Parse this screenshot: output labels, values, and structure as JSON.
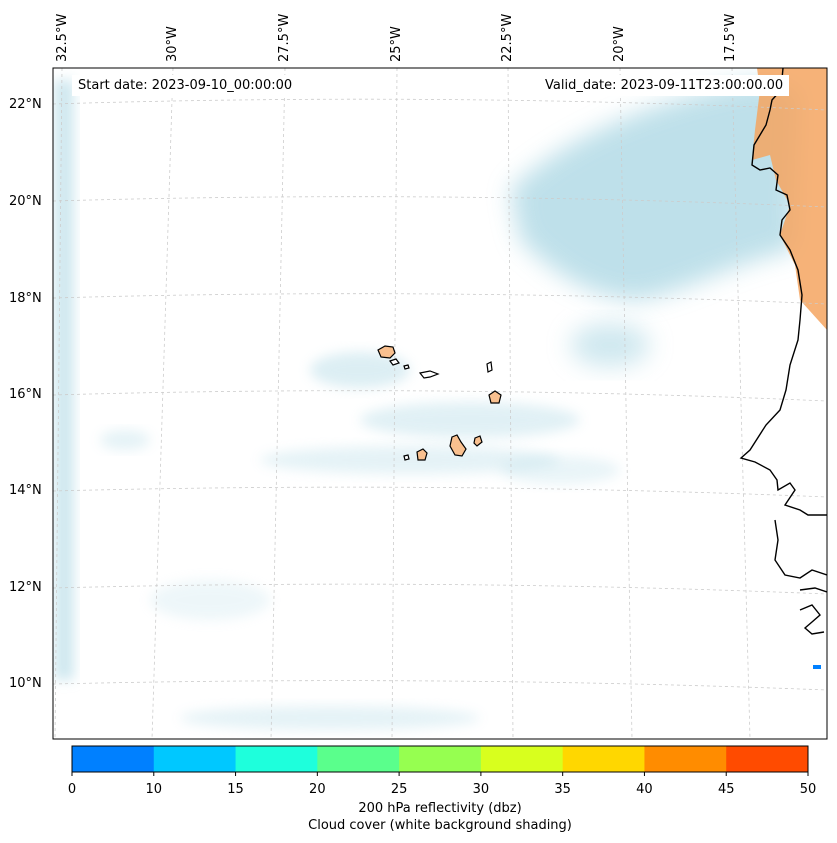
{
  "map": {
    "start_date": "Start date: 2023-09-10_00:00:00",
    "valid_date": "Valid_date: 2023-09-11T23:00:00.00",
    "lon_labels": [
      "32.5°W",
      "30°W",
      "27.5°W",
      "25°W",
      "22.5°W",
      "20°W",
      "17.5°W"
    ],
    "lat_labels": [
      "22°N",
      "20°N",
      "18°N",
      "16°N",
      "14°N",
      "12°N",
      "10°N"
    ]
  },
  "colorbar": {
    "title": "200 hPa reflectivity (dbz)",
    "subtitle": "Cloud cover (white background shading)",
    "ticks": [
      "0",
      "10",
      "15",
      "20",
      "25",
      "30",
      "35",
      "40",
      "45",
      "50"
    ],
    "colors": [
      "#0080ff",
      "#00c8ff",
      "#1effdc",
      "#5aff8c",
      "#96ff50",
      "#d8ff1e",
      "#ffd700",
      "#ff8c00",
      "#ff4b00"
    ]
  },
  "colors": {
    "cloud": "#a9d6e3",
    "land_reflectivity": "#f4a460",
    "coastline": "#000000",
    "gridline": "#cccccc"
  }
}
